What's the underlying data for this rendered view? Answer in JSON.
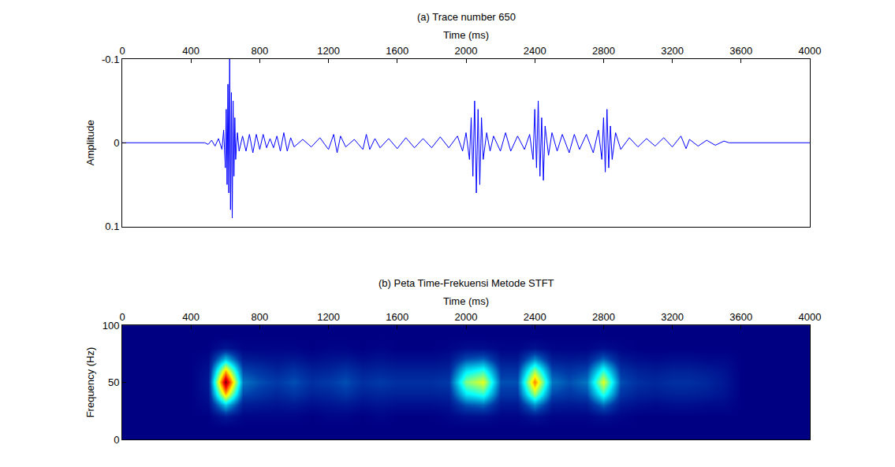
{
  "chart_data": [
    {
      "type": "line",
      "title": "(a) Trace number 650",
      "x_label": "Time (ms)",
      "y_label": "Amplitude",
      "x": [
        0,
        480,
        500,
        520,
        540,
        560,
        580,
        590,
        600,
        605,
        610,
        615,
        620,
        625,
        630,
        635,
        640,
        645,
        650,
        655,
        660,
        670,
        680,
        700,
        720,
        740,
        760,
        780,
        800,
        820,
        840,
        860,
        880,
        900,
        920,
        940,
        960,
        980,
        1000,
        1050,
        1100,
        1150,
        1200,
        1230,
        1250,
        1270,
        1300,
        1350,
        1400,
        1420,
        1440,
        1470,
        1500,
        1550,
        1600,
        1650,
        1700,
        1750,
        1800,
        1850,
        1900,
        1950,
        1980,
        2000,
        2020,
        2030,
        2040,
        2050,
        2060,
        2070,
        2080,
        2090,
        2100,
        2120,
        2140,
        2160,
        2200,
        2230,
        2260,
        2300,
        2340,
        2370,
        2390,
        2400,
        2410,
        2420,
        2430,
        2440,
        2450,
        2460,
        2480,
        2500,
        2530,
        2560,
        2600,
        2630,
        2660,
        2700,
        2740,
        2770,
        2790,
        2800,
        2810,
        2820,
        2830,
        2840,
        2850,
        2870,
        2900,
        2950,
        3000,
        3050,
        3100,
        3150,
        3200,
        3250,
        3280,
        3300,
        3350,
        3400,
        3450,
        3500,
        3530,
        4000
      ],
      "values": [
        0,
        0,
        0.002,
        -0.003,
        0.004,
        -0.005,
        0.008,
        -0.015,
        0.03,
        -0.04,
        0.05,
        -0.07,
        0.06,
        -0.1,
        0.08,
        -0.06,
        0.09,
        -0.05,
        0.04,
        -0.03,
        0.02,
        -0.012,
        0.01,
        -0.008,
        0.01,
        -0.01,
        0.012,
        -0.01,
        0.008,
        -0.01,
        0.006,
        -0.005,
        0.006,
        -0.008,
        0.01,
        -0.012,
        0.01,
        -0.006,
        0.005,
        -0.004,
        0.005,
        -0.006,
        0.008,
        -0.01,
        0.012,
        -0.008,
        0.005,
        -0.004,
        0.008,
        -0.01,
        0.008,
        -0.005,
        0.006,
        -0.005,
        0.007,
        -0.006,
        0.006,
        -0.005,
        0.006,
        -0.007,
        0.006,
        -0.008,
        0.01,
        -0.012,
        0.02,
        -0.03,
        0.04,
        -0.05,
        0.06,
        -0.04,
        0.05,
        -0.03,
        0.02,
        -0.012,
        0.01,
        -0.008,
        0.01,
        -0.012,
        0.01,
        -0.008,
        0.008,
        -0.01,
        0.02,
        -0.04,
        0.03,
        -0.05,
        0.04,
        -0.03,
        0.045,
        -0.02,
        0.015,
        -0.012,
        0.01,
        -0.01,
        0.012,
        -0.01,
        0.008,
        -0.01,
        0.012,
        -0.015,
        0.02,
        -0.03,
        0.035,
        -0.04,
        0.03,
        -0.02,
        0.02,
        -0.012,
        0.008,
        -0.006,
        0.005,
        -0.005,
        0.004,
        -0.006,
        0.005,
        -0.008,
        0.007,
        -0.004,
        0.004,
        -0.003,
        0.003,
        -0.002,
        0,
        0
      ],
      "color": "#0000ff",
      "xlim": [
        0,
        4000
      ],
      "xticks": [
        0,
        400,
        800,
        1200,
        1600,
        2000,
        2400,
        2800,
        3200,
        3600,
        4000
      ],
      "ylim": [
        0.1,
        -0.1
      ],
      "yticks": [
        -0.1,
        0,
        0.1
      ],
      "grid": false
    },
    {
      "type": "heatmap",
      "title": "(b) Peta Time-Frekuensi Metode STFT",
      "x_label": "Time (ms)",
      "y_label": "Frequency (Hz)",
      "x": [
        0,
        100,
        200,
        300,
        400,
        500,
        600,
        700,
        800,
        900,
        1000,
        1100,
        1200,
        1300,
        1400,
        1500,
        1600,
        1700,
        1800,
        1900,
        2000,
        2100,
        2200,
        2300,
        2400,
        2500,
        2600,
        2700,
        2800,
        2900,
        3000,
        3100,
        3200,
        3300,
        3400,
        3500,
        3600,
        3700,
        3800,
        3900,
        4000
      ],
      "y": [
        0,
        10,
        20,
        30,
        40,
        50,
        60,
        70,
        80,
        90,
        100
      ],
      "z": [
        [
          0,
          0,
          0,
          0,
          0,
          0,
          0,
          0,
          0,
          0,
          0,
          0,
          0,
          0,
          0,
          0,
          0,
          0,
          0,
          0,
          0,
          0,
          0,
          0,
          0,
          0,
          0,
          0,
          0,
          0,
          0,
          0,
          0,
          0,
          0,
          0,
          0,
          0,
          0,
          0,
          0
        ],
        [
          0,
          0,
          0,
          0,
          0,
          0,
          0,
          0,
          0,
          0,
          0,
          0,
          0,
          0,
          0,
          0,
          0,
          0,
          0,
          0,
          0,
          0,
          0,
          0,
          0,
          0,
          0,
          0,
          0,
          0,
          0,
          0,
          0,
          0,
          0,
          0,
          0,
          0,
          0,
          0,
          0
        ],
        [
          0,
          0,
          0,
          0,
          0,
          0,
          0.05,
          0.01,
          0.01,
          0.01,
          0.01,
          0,
          0.01,
          0.01,
          0,
          0.01,
          0,
          0,
          0,
          0.01,
          0.03,
          0.03,
          0.01,
          0.01,
          0.04,
          0.01,
          0.01,
          0.01,
          0.03,
          0.01,
          0,
          0,
          0,
          0,
          0,
          0,
          0,
          0,
          0,
          0,
          0
        ],
        [
          0,
          0,
          0,
          0,
          0,
          0.02,
          0.3,
          0.06,
          0.05,
          0.04,
          0.05,
          0.03,
          0.04,
          0.05,
          0.03,
          0.04,
          0.03,
          0.03,
          0.03,
          0.04,
          0.15,
          0.18,
          0.05,
          0.05,
          0.23,
          0.06,
          0.05,
          0.06,
          0.18,
          0.05,
          0.03,
          0.02,
          0.03,
          0.03,
          0.02,
          0.02,
          0,
          0,
          0,
          0,
          0
        ],
        [
          0,
          0,
          0,
          0,
          0,
          0.04,
          0.7,
          0.14,
          0.11,
          0.08,
          0.11,
          0.07,
          0.08,
          0.11,
          0.07,
          0.08,
          0.07,
          0.07,
          0.07,
          0.08,
          0.35,
          0.42,
          0.11,
          0.11,
          0.53,
          0.14,
          0.11,
          0.14,
          0.42,
          0.11,
          0.07,
          0.06,
          0.07,
          0.07,
          0.06,
          0.04,
          0,
          0,
          0,
          0,
          0
        ],
        [
          0,
          0,
          0,
          0,
          0,
          0.05,
          1,
          0.2,
          0.15,
          0.12,
          0.15,
          0.1,
          0.12,
          0.15,
          0.1,
          0.12,
          0.1,
          0.1,
          0.1,
          0.12,
          0.5,
          0.6,
          0.15,
          0.15,
          0.75,
          0.2,
          0.15,
          0.2,
          0.6,
          0.15,
          0.1,
          0.08,
          0.1,
          0.1,
          0.08,
          0.05,
          0,
          0,
          0,
          0,
          0
        ],
        [
          0,
          0,
          0,
          0,
          0,
          0.04,
          0.7,
          0.14,
          0.11,
          0.08,
          0.11,
          0.07,
          0.08,
          0.11,
          0.07,
          0.08,
          0.07,
          0.07,
          0.07,
          0.08,
          0.35,
          0.42,
          0.11,
          0.11,
          0.53,
          0.14,
          0.11,
          0.14,
          0.42,
          0.11,
          0.07,
          0.06,
          0.07,
          0.07,
          0.06,
          0.04,
          0,
          0,
          0,
          0,
          0
        ],
        [
          0,
          0,
          0,
          0,
          0,
          0.02,
          0.3,
          0.06,
          0.05,
          0.04,
          0.05,
          0.03,
          0.04,
          0.05,
          0.03,
          0.04,
          0.03,
          0.03,
          0.03,
          0.04,
          0.15,
          0.18,
          0.05,
          0.05,
          0.23,
          0.06,
          0.05,
          0.06,
          0.18,
          0.05,
          0.03,
          0.02,
          0.03,
          0.03,
          0.02,
          0.02,
          0,
          0,
          0,
          0,
          0
        ],
        [
          0,
          0,
          0,
          0,
          0,
          0,
          0.05,
          0.01,
          0.01,
          0.01,
          0.01,
          0,
          0.01,
          0.01,
          0,
          0.01,
          0,
          0,
          0,
          0.01,
          0.03,
          0.03,
          0.01,
          0.01,
          0.04,
          0.01,
          0.01,
          0.01,
          0.03,
          0.01,
          0,
          0,
          0,
          0,
          0,
          0,
          0,
          0,
          0,
          0,
          0
        ],
        [
          0,
          0,
          0,
          0,
          0,
          0,
          0,
          0,
          0,
          0,
          0,
          0,
          0,
          0,
          0,
          0,
          0,
          0,
          0,
          0,
          0,
          0,
          0,
          0,
          0,
          0,
          0,
          0,
          0,
          0,
          0,
          0,
          0,
          0,
          0,
          0,
          0,
          0,
          0,
          0,
          0
        ],
        [
          0,
          0,
          0,
          0,
          0,
          0,
          0,
          0,
          0,
          0,
          0,
          0,
          0,
          0,
          0,
          0,
          0,
          0,
          0,
          0,
          0,
          0,
          0,
          0,
          0,
          0,
          0,
          0,
          0,
          0,
          0,
          0,
          0,
          0,
          0,
          0,
          0,
          0,
          0,
          0,
          0
        ]
      ],
      "zlim": [
        0,
        1
      ],
      "color": "Jet",
      "xlim": [
        0,
        4000
      ],
      "xticks": [
        0,
        400,
        800,
        1200,
        1600,
        2000,
        2400,
        2800,
        3200,
        3600,
        4000
      ],
      "ylim": [
        0,
        100
      ],
      "yticks": [
        0,
        50,
        100
      ],
      "grid": false
    }
  ]
}
